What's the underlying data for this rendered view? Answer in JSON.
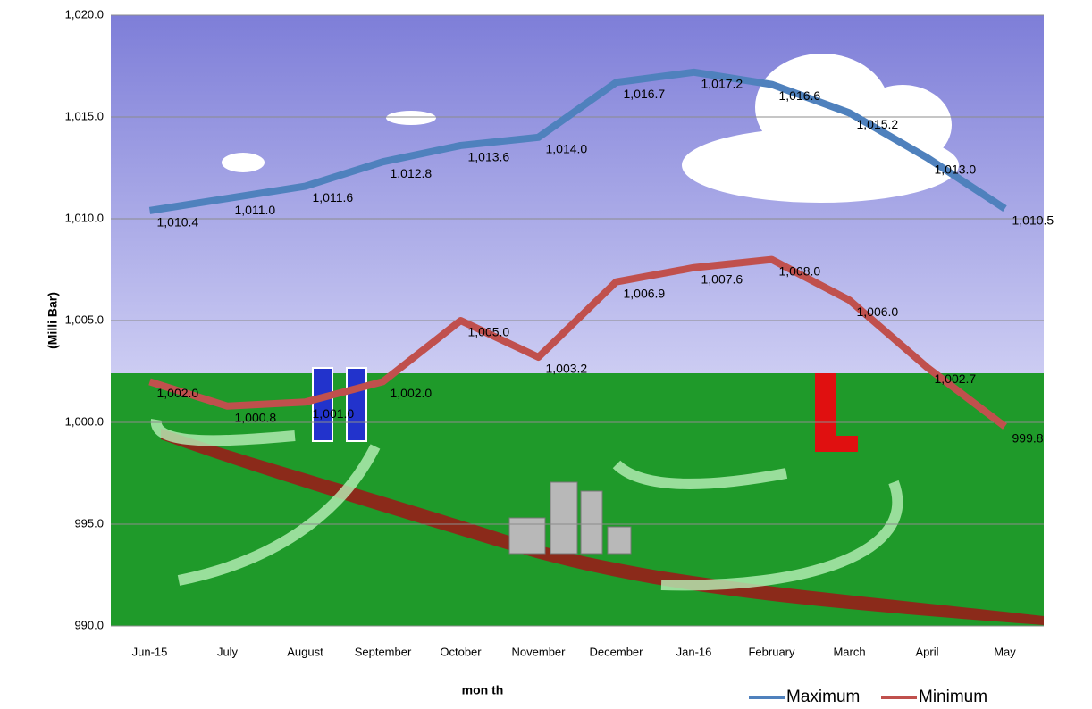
{
  "chart_data": {
    "type": "line",
    "categories": [
      "Jun-15",
      "July",
      "August",
      "September",
      "October",
      "November",
      "December",
      "Jan-16",
      "February",
      "March",
      "April",
      "May"
    ],
    "series": [
      {
        "name": "Maximum",
        "color": "#4f81bd",
        "values": [
          1010.4,
          1011.0,
          1011.6,
          1012.8,
          1013.6,
          1014.0,
          1016.7,
          1017.2,
          1016.6,
          1015.2,
          1013.0,
          1010.5
        ],
        "value_labels": [
          "1,010.4",
          "1,011.0",
          "1,011.6",
          "1,012.8",
          "1,013.6",
          "1,014.0",
          "1,016.7",
          "1,017.2",
          "1,016.6",
          "1,015.2",
          "1,013.0",
          "1,010.5"
        ]
      },
      {
        "name": "Minimum",
        "color": "#c0504d",
        "values": [
          1002.0,
          1000.8,
          1001.0,
          1002.0,
          1005.0,
          1003.2,
          1006.9,
          1007.6,
          1008.0,
          1006.0,
          1002.7,
          999.8
        ],
        "value_labels": [
          "1,002.0",
          "1,000.8",
          "1,001.0",
          "1,002.0",
          "1,005.0",
          "1,003.2",
          "1,006.9",
          "1,007.6",
          "1,008.0",
          "1,006.0",
          "1,002.7",
          "999.8"
        ]
      }
    ],
    "ylim": [
      990,
      1020
    ],
    "yticks": [
      {
        "value": 990,
        "label": "990.0"
      },
      {
        "value": 995,
        "label": "995.0"
      },
      {
        "value": 1000,
        "label": "1,000.0"
      },
      {
        "value": 1005,
        "label": "1,005.0"
      },
      {
        "value": 1010,
        "label": "1,010.0"
      },
      {
        "value": 1015,
        "label": "1,015.0"
      },
      {
        "value": 1020,
        "label": "1,020.0"
      }
    ],
    "ylabel": "(Milli Bar)",
    "xlabel": "mon th",
    "grid": true,
    "legend": "bottom-right"
  }
}
